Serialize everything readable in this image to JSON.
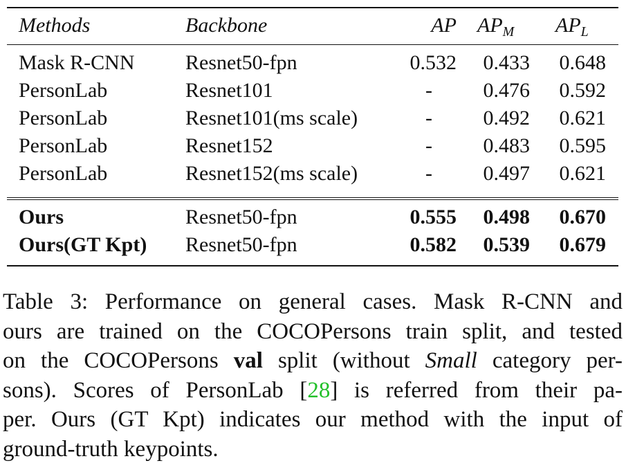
{
  "table": {
    "headers": {
      "methods": "Methods",
      "backbone": "Backbone",
      "ap": "AP",
      "apm_base": "AP",
      "apm_sub": "M",
      "apl_base": "AP",
      "apl_sub": "L"
    },
    "rows": [
      {
        "method": "Mask R-CNN",
        "backbone": "Resnet50-fpn",
        "ap": "0.532",
        "apm": "0.433",
        "apl": "0.648"
      },
      {
        "method": "PersonLab",
        "backbone": "Resnet101",
        "ap": "-",
        "apm": "0.476",
        "apl": "0.592"
      },
      {
        "method": "PersonLab",
        "backbone": "Resnet101(ms scale)",
        "ap": "-",
        "apm": "0.492",
        "apl": "0.621"
      },
      {
        "method": "PersonLab",
        "backbone": "Resnet152",
        "ap": "-",
        "apm": "0.483",
        "apl": "0.595"
      },
      {
        "method": "PersonLab",
        "backbone": "Resnet152(ms scale)",
        "ap": "-",
        "apm": "0.497",
        "apl": "0.621"
      }
    ],
    "ours_rows": [
      {
        "method": "Ours",
        "backbone": "Resnet50-fpn",
        "ap": "0.555",
        "apm": "0.498",
        "apl": "0.670"
      },
      {
        "method": "Ours(GT Kpt)",
        "backbone": "Resnet50-fpn",
        "ap": "0.582",
        "apm": "0.539",
        "apl": "0.679"
      }
    ]
  },
  "caption": {
    "line1": "Table 3: Performance on general cases. Mask R-CNN and",
    "line2": "ours are trained on the COCOPersons train split, and tested",
    "line3_a": "on the COCOPersons ",
    "line3_bold": "val",
    "line3_b": " split (without ",
    "line3_ital": "Small",
    "line3_c": " category per-",
    "line4_a": "sons). Scores of PersonLab [",
    "line4_cite": "28",
    "line4_b": "] is referred from their pa-",
    "line5": "per. Ours (GT Kpt) indicates our method with the input of",
    "line6": "ground-truth keypoints."
  }
}
